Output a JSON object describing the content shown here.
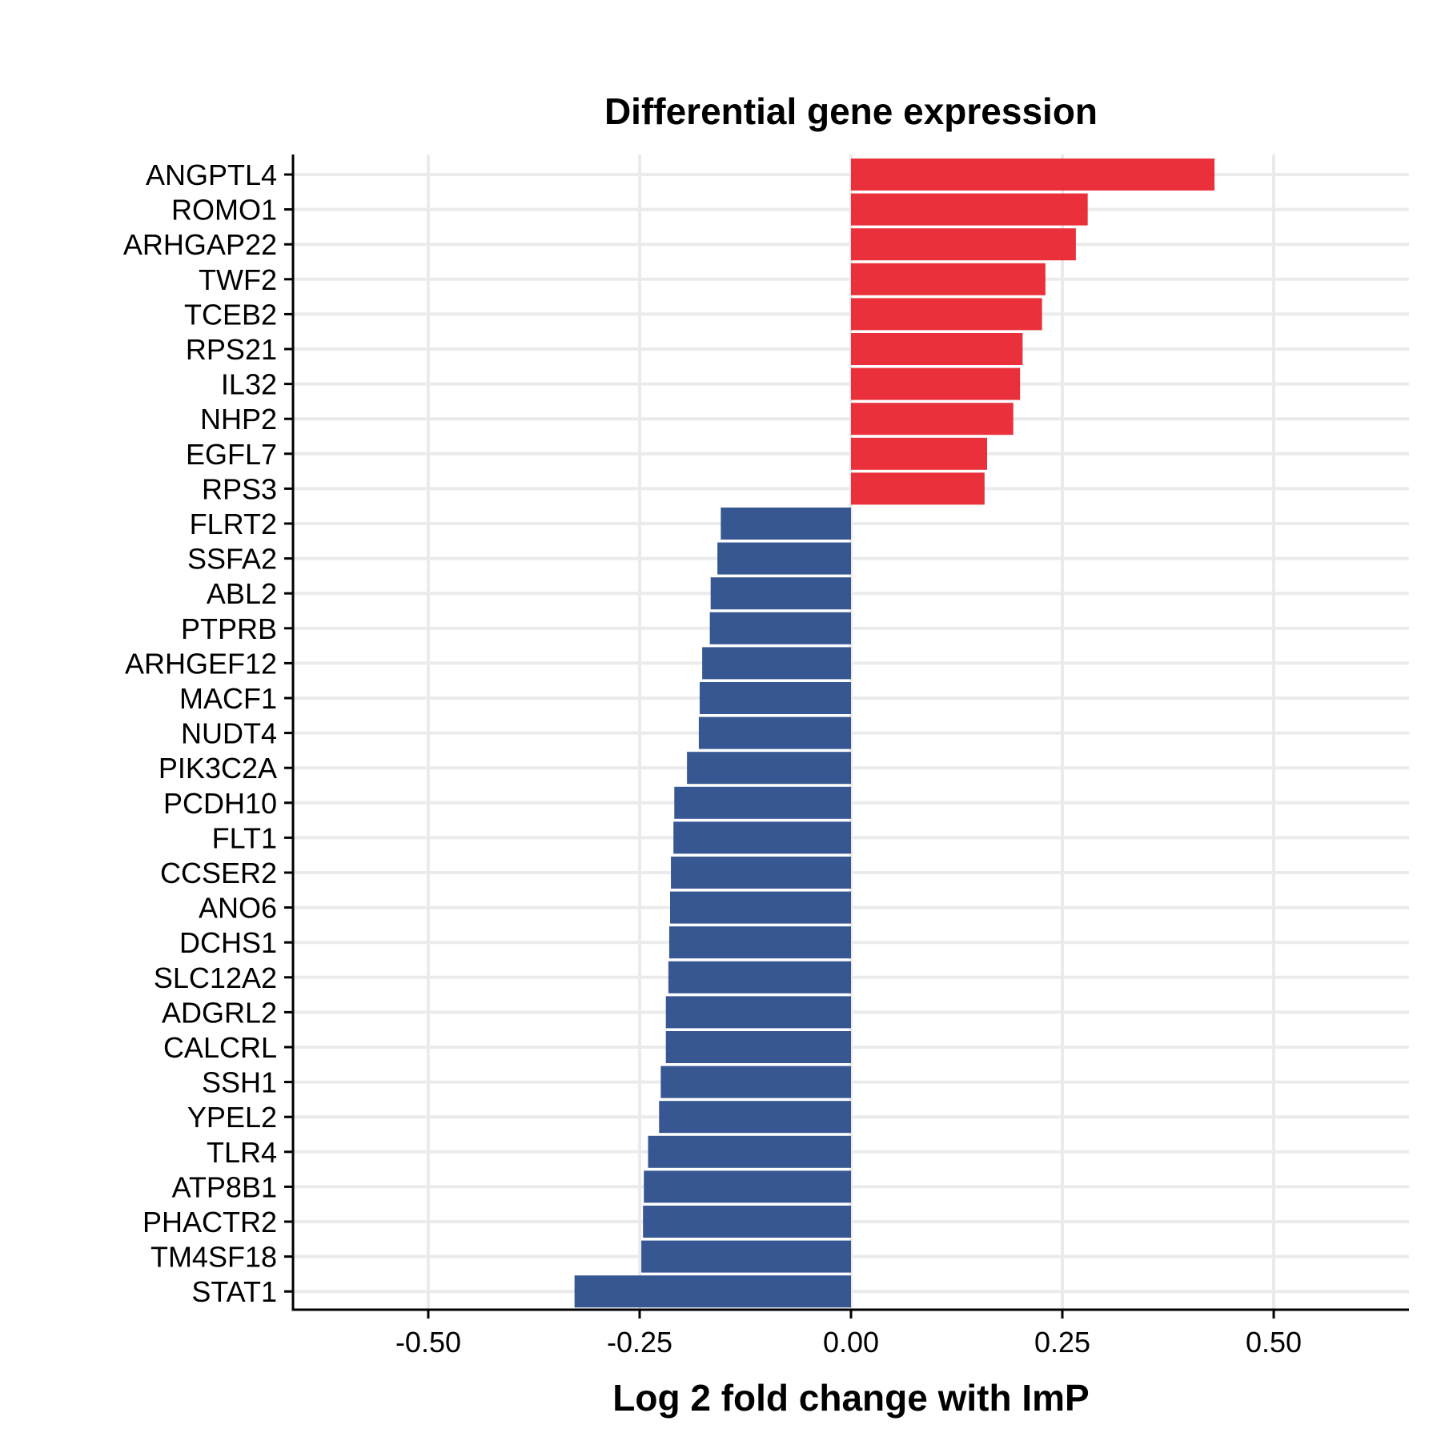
{
  "chart_data": {
    "type": "bar",
    "orientation": "horizontal",
    "title": "Differential gene expression",
    "xlabel": "Log 2 fold change with ImP",
    "ylabel": "",
    "xlim": [
      -0.66,
      0.66
    ],
    "xticks": [
      -0.5,
      -0.25,
      0.0,
      0.25,
      0.5
    ],
    "xtick_labels": [
      "-0.50",
      "-0.25",
      "0.00",
      "0.25",
      "0.50"
    ],
    "grid": true,
    "colors": {
      "positive": "#E8202A",
      "negative": "#2B4E8C"
    },
    "categories": [
      "ANGPTL4",
      "ROMO1",
      "ARHGAP22",
      "TWF2",
      "TCEB2",
      "RPS21",
      "IL32",
      "NHP2",
      "EGFL7",
      "RPS3",
      "FLRT2",
      "SSFA2",
      "ABL2",
      "PTPRB",
      "ARHGEF12",
      "MACF1",
      "NUDT4",
      "PIK3C2A",
      "PCDH10",
      "FLT1",
      "CCSER2",
      "ANO6",
      "DCHS1",
      "SLC12A2",
      "ADGRL2",
      "CALCRL",
      "SSH1",
      "YPEL2",
      "TLR4",
      "ATP8B1",
      "PHACTR2",
      "TM4SF18",
      "STAT1"
    ],
    "values": [
      0.43,
      0.28,
      0.266,
      0.23,
      0.226,
      0.203,
      0.2,
      0.192,
      0.161,
      0.158,
      -0.154,
      -0.158,
      -0.166,
      -0.167,
      -0.176,
      -0.179,
      -0.18,
      -0.194,
      -0.209,
      -0.21,
      -0.213,
      -0.214,
      -0.215,
      -0.216,
      -0.219,
      -0.219,
      -0.225,
      -0.227,
      -0.24,
      -0.245,
      -0.246,
      -0.248,
      -0.327
    ]
  }
}
